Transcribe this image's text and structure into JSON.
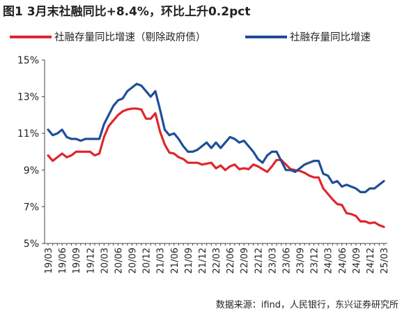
{
  "title": "图1  3月末社融同比+8.4%，环比上升0.2pct",
  "source": "数据来源：ifind，人民银行，东兴证券研究所",
  "chart_data": {
    "type": "line",
    "title": "图1  3月末社融同比+8.4%，环比上升0.2pct",
    "xlabel": "",
    "ylabel": "",
    "ylim": [
      5,
      15
    ],
    "yticks": [
      5,
      7,
      9,
      11,
      13,
      15
    ],
    "ytick_labels": [
      "5%",
      "7%",
      "9%",
      "11%",
      "13%",
      "15%"
    ],
    "grid": false,
    "legend_position": "top",
    "x": [
      "19/03",
      "19/04",
      "19/05",
      "19/06",
      "19/07",
      "19/08",
      "19/09",
      "19/10",
      "19/11",
      "19/12",
      "20/01",
      "20/02",
      "20/03",
      "20/04",
      "20/05",
      "20/06",
      "20/07",
      "20/08",
      "20/09",
      "20/10",
      "20/11",
      "20/12",
      "21/01",
      "21/02",
      "21/03",
      "21/04",
      "21/05",
      "21/06",
      "21/07",
      "21/08",
      "21/09",
      "21/10",
      "21/11",
      "21/12",
      "22/01",
      "22/02",
      "22/03",
      "22/04",
      "22/05",
      "22/06",
      "22/07",
      "22/08",
      "22/09",
      "22/10",
      "22/11",
      "22/12",
      "23/01",
      "23/02",
      "23/03",
      "23/04",
      "23/05",
      "23/06",
      "23/07",
      "23/08",
      "23/09",
      "23/10",
      "23/11",
      "23/12",
      "24/01",
      "24/02",
      "24/03",
      "24/04",
      "24/05",
      "24/06",
      "24/07",
      "24/08",
      "24/09",
      "24/10",
      "24/11",
      "24/12",
      "25/01",
      "25/02",
      "25/03"
    ],
    "x_tick_labels": [
      "19/03",
      "19/06",
      "19/09",
      "19/12",
      "20/03",
      "20/06",
      "20/09",
      "20/12",
      "21/03",
      "21/06",
      "21/09",
      "21/12",
      "22/03",
      "22/06",
      "22/09",
      "22/12",
      "23/03",
      "23/06",
      "23/09",
      "23/12",
      "24/03",
      "24/06",
      "24/09",
      "24/12",
      "25/03"
    ],
    "series": [
      {
        "name": "社融存量同比增速（剔除政府债）",
        "color": "#e0262b",
        "values": [
          9.8,
          9.5,
          9.7,
          9.9,
          9.7,
          9.8,
          10.0,
          10.0,
          10.0,
          10.0,
          9.8,
          9.9,
          10.8,
          11.4,
          11.7,
          12.0,
          12.2,
          12.3,
          12.35,
          12.35,
          12.3,
          11.8,
          11.8,
          12.1,
          11.1,
          10.4,
          9.95,
          9.9,
          9.7,
          9.6,
          9.4,
          9.4,
          9.4,
          9.3,
          9.35,
          9.4,
          9.1,
          9.25,
          9.0,
          9.2,
          9.3,
          9.05,
          9.1,
          9.05,
          9.3,
          9.2,
          9.05,
          8.9,
          9.2,
          9.55,
          9.55,
          9.3,
          9.05,
          9.0,
          8.95,
          8.85,
          8.7,
          8.6,
          8.6,
          8.0,
          7.7,
          7.4,
          7.15,
          7.1,
          6.65,
          6.6,
          6.5,
          6.2,
          6.2,
          6.1,
          6.15,
          6.0,
          5.9
        ]
      },
      {
        "name": "社融存量同比增速",
        "color": "#1f4e99",
        "values": [
          11.2,
          10.9,
          11.0,
          11.2,
          10.8,
          10.7,
          10.7,
          10.6,
          10.7,
          10.7,
          10.7,
          10.7,
          11.5,
          12.0,
          12.5,
          12.8,
          12.9,
          13.3,
          13.5,
          13.7,
          13.6,
          13.3,
          13.0,
          13.3,
          12.3,
          11.2,
          10.9,
          11.0,
          10.7,
          10.3,
          10.0,
          10.0,
          10.1,
          10.3,
          10.5,
          10.2,
          10.5,
          10.2,
          10.5,
          10.8,
          10.7,
          10.5,
          10.6,
          10.3,
          10.0,
          9.6,
          9.4,
          9.8,
          10.0,
          10.0,
          9.5,
          9.0,
          9.0,
          8.9,
          9.1,
          9.3,
          9.4,
          9.5,
          9.5,
          8.8,
          8.7,
          8.3,
          8.4,
          8.1,
          8.2,
          8.1,
          8.0,
          7.8,
          7.8,
          8.0,
          8.0,
          8.2,
          8.4
        ]
      }
    ]
  }
}
